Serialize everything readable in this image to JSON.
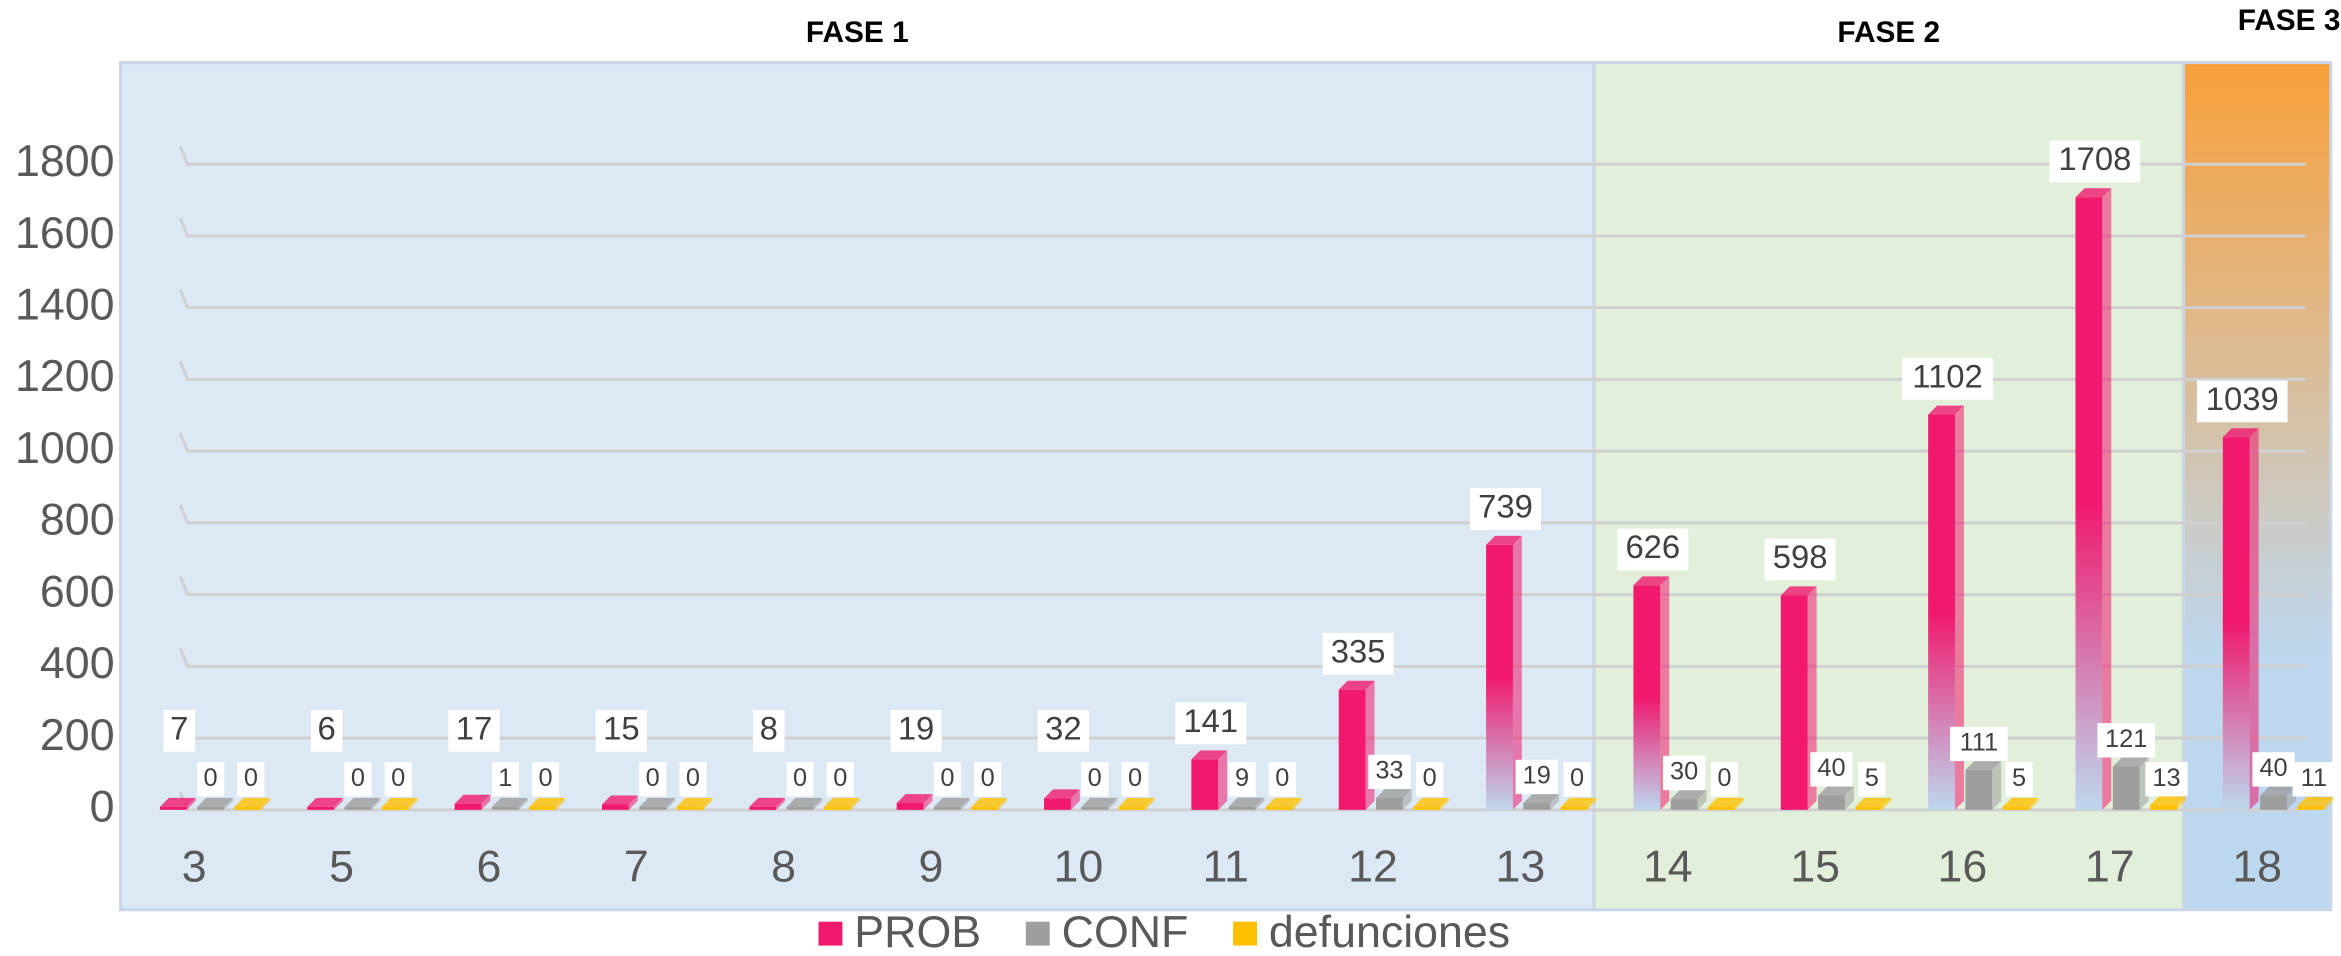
{
  "chart_data": {
    "type": "bar3d",
    "categories": [
      "3",
      "5",
      "6",
      "7",
      "8",
      "9",
      "10",
      "11",
      "12",
      "13",
      "14",
      "15",
      "16",
      "17",
      "18"
    ],
    "series": [
      {
        "name": "PROB",
        "color": "#f0196e",
        "values": [
          7,
          6,
          17,
          15,
          8,
          19,
          32,
          141,
          335,
          739,
          626,
          598,
          1102,
          1708,
          1039
        ]
      },
      {
        "name": "CONF",
        "color": "#9e9e9e",
        "values": [
          0,
          0,
          1,
          0,
          0,
          0,
          0,
          9,
          33,
          19,
          30,
          40,
          111,
          121,
          40
        ]
      },
      {
        "name": "defunciones",
        "color": "#ffc000",
        "values": [
          0,
          0,
          0,
          0,
          0,
          0,
          0,
          0,
          0,
          0,
          0,
          5,
          5,
          13,
          11
        ]
      }
    ],
    "phases": [
      {
        "label": "FASE 1",
        "first": "3",
        "last": "13",
        "color": "#dce9f5"
      },
      {
        "label": "FASE 2",
        "first": "14",
        "last": "17",
        "color": "#e2efda"
      },
      {
        "label": "FASE 3",
        "first": "18",
        "last": "18",
        "color": "#f9a03a"
      }
    ],
    "ylim": [
      0,
      2000
    ],
    "yticks": [
      0,
      200,
      400,
      600,
      800,
      1000,
      1200,
      1400,
      1600,
      1800
    ],
    "grid": true,
    "legend": "bottom"
  }
}
